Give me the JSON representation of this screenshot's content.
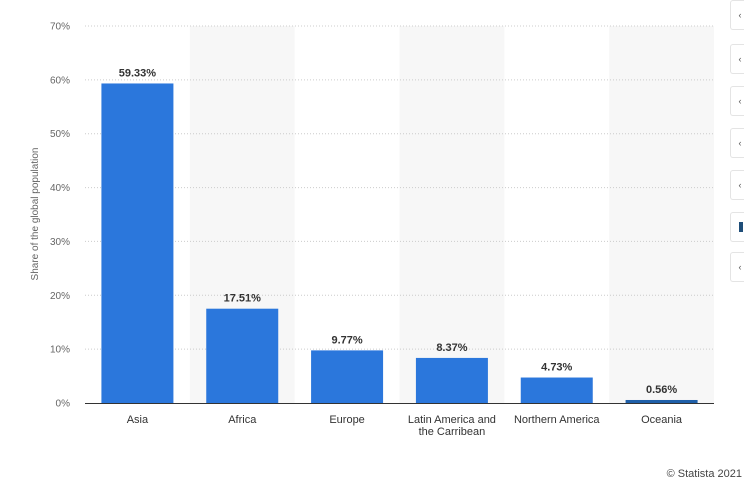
{
  "chart_data": {
    "type": "bar",
    "categories": [
      "Asia",
      "Africa",
      "Europe",
      "Latin America and the Carribean",
      "Northern America",
      "Oceania"
    ],
    "category_lines": [
      [
        "Asia"
      ],
      [
        "Africa"
      ],
      [
        "Europe"
      ],
      [
        "Latin America and",
        "the Carribean"
      ],
      [
        "Northern America"
      ],
      [
        "Oceania"
      ]
    ],
    "values": [
      59.33,
      17.51,
      9.77,
      8.37,
      4.73,
      0.56
    ],
    "data_labels": [
      "59.33%",
      "17.51%",
      "9.77%",
      "8.37%",
      "4.73%",
      "0.56%"
    ],
    "ylabel": "Share of the global population",
    "ylim": [
      0,
      70
    ],
    "yticks": [
      0,
      10,
      20,
      30,
      40,
      50,
      60,
      70
    ],
    "ytick_labels": [
      "0%",
      "10%",
      "20%",
      "30%",
      "40%",
      "50%",
      "60%",
      "70%"
    ],
    "grid": true,
    "colors": {
      "bar": "#2b77dc",
      "oceania_bar": "#1f5fa8",
      "band": "#f7f7f7",
      "grid": "#cccccc"
    }
  },
  "footer": {
    "credit": "© Statista 2021"
  },
  "toolbar": {
    "buttons": [
      {
        "name": "chevron-icon",
        "glyph": "‹"
      },
      {
        "name": "bell-icon",
        "glyph": "‹"
      },
      {
        "name": "settings-icon",
        "glyph": "‹"
      },
      {
        "name": "share-icon",
        "glyph": "‹"
      },
      {
        "name": "quote-icon",
        "glyph": "‹"
      },
      {
        "name": "info-icon",
        "glyph": ""
      },
      {
        "name": "print-icon",
        "glyph": "‹"
      }
    ]
  }
}
